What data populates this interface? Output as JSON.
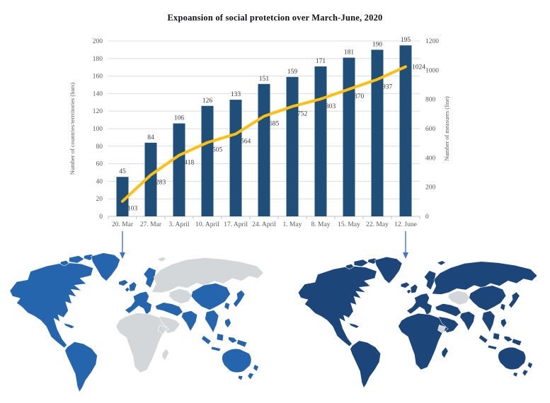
{
  "title": "Expoansion of social protetcion over March-June, 2020",
  "chart_data": {
    "type": "bar+line combo",
    "title": "Expoansion of social protetcion over March-June, 2020",
    "categories": [
      "20. Mar",
      "27. Mar",
      "3. April",
      "10. April",
      "17. April",
      "24. April",
      "1. May",
      "8. May",
      "15. May",
      "22. May",
      "12. June"
    ],
    "series": [
      {
        "name": "Number of countries/territories (bars)",
        "type": "bar",
        "axis": "left",
        "values": [
          45,
          84,
          106,
          126,
          133,
          151,
          159,
          171,
          181,
          190,
          195
        ]
      },
      {
        "name": "Number of measures (line)",
        "type": "line",
        "axis": "right",
        "values": [
          103,
          283,
          418,
          505,
          564,
          685,
          752,
          803,
          870,
          937,
          1024
        ]
      }
    ],
    "left_axis": {
      "label": "Number of countries/terrritories (bars)",
      "min": 0,
      "max": 200,
      "step": 20
    },
    "right_axis": {
      "label": "Number of measures (line)",
      "min": 0,
      "max": 1200,
      "step": 200
    },
    "grid": true,
    "legend": "none"
  },
  "axis_titles": {
    "left": "Number of countries/terrritories (bars)",
    "right": "Number of measures (line)"
  },
  "arrows": [
    {
      "name": "down-arrow-icon",
      "category": "20. Mar"
    },
    {
      "name": "down-arrow-icon",
      "category": "12. June"
    }
  ],
  "colors": {
    "bar": "#1f4e79",
    "line": "#fdbf11",
    "grid": "#dcdcdc",
    "axis_line": "#c0c0c0",
    "tick_text": "#595959",
    "value_text": "#3a3a3a",
    "arrow": "#4472c4",
    "map_off": "#d3d7da",
    "map_border": "#ffffff"
  },
  "maps": {
    "left": {
      "name": "world-map-20-march",
      "highlight": "#2465ae",
      "regions": {
        "north-america": "on",
        "arctic-islands": "on",
        "caribbean": "on",
        "greenland": "on",
        "iceland": "on",
        "south-america": "on",
        "uk-ireland": "on",
        "scandinavia": "on",
        "western-europe": "on",
        "eastern-europe-russia": "off",
        "central-asia": "off",
        "turkey-iran": "on",
        "middle-east": "off",
        "africa": "off",
        "east-africa": "off",
        "madagascar": "off",
        "india": "on",
        "china": "on",
        "korea": "on",
        "japan": "on",
        "se-asia": "on",
        "philippines": "on",
        "indonesia": "on",
        "new-guinea": "on",
        "australia": "on",
        "tasmania": "on",
        "new-zealand": "on"
      }
    },
    "right": {
      "name": "world-map-12-june",
      "highlight": "#1c4679",
      "regions": {
        "north-america": "on",
        "arctic-islands": "on",
        "caribbean": "on",
        "greenland": "on",
        "iceland": "on",
        "south-america": "on",
        "uk-ireland": "on",
        "scandinavia": "on",
        "western-europe": "on",
        "eastern-europe-russia": "on",
        "central-asia": "off",
        "turkey-iran": "on",
        "middle-east": "on",
        "africa": "on",
        "east-africa": "off",
        "madagascar": "on",
        "india": "on",
        "china": "on",
        "korea": "on",
        "japan": "on",
        "se-asia": "on",
        "philippines": "on",
        "indonesia": "on",
        "new-guinea": "on",
        "australia": "on",
        "tasmania": "on",
        "new-zealand": "on"
      }
    }
  }
}
